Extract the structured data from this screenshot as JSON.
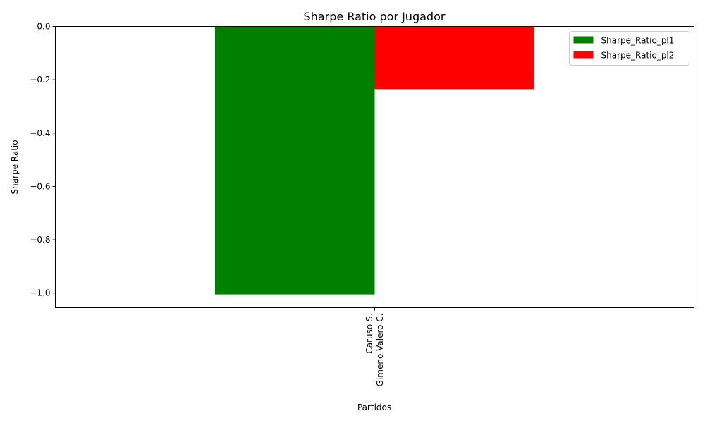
{
  "chart_data": {
    "type": "bar",
    "title": "Sharpe Ratio por Jugador",
    "xlabel": "Partidos",
    "ylabel": "Sharpe Ratio",
    "categories": [
      [
        "Caruso S.",
        "Gimeno Valero C."
      ]
    ],
    "series": [
      {
        "name": "Sharpe_Ratio_pl1",
        "color": "#008000",
        "values": [
          -1.005
        ]
      },
      {
        "name": "Sharpe_Ratio_pl2",
        "color": "#ff0000",
        "values": [
          -0.235
        ]
      }
    ],
    "ylim": [
      -1.055,
      0.0
    ],
    "yticks": [
      0.0,
      -0.2,
      -0.4,
      -0.6,
      -0.8,
      -1.0
    ],
    "ytick_labels": [
      "0.0",
      "−0.2",
      "−0.4",
      "−0.6",
      "−0.8",
      "−1.0"
    ],
    "grid": false,
    "legend_position": "top-right"
  }
}
